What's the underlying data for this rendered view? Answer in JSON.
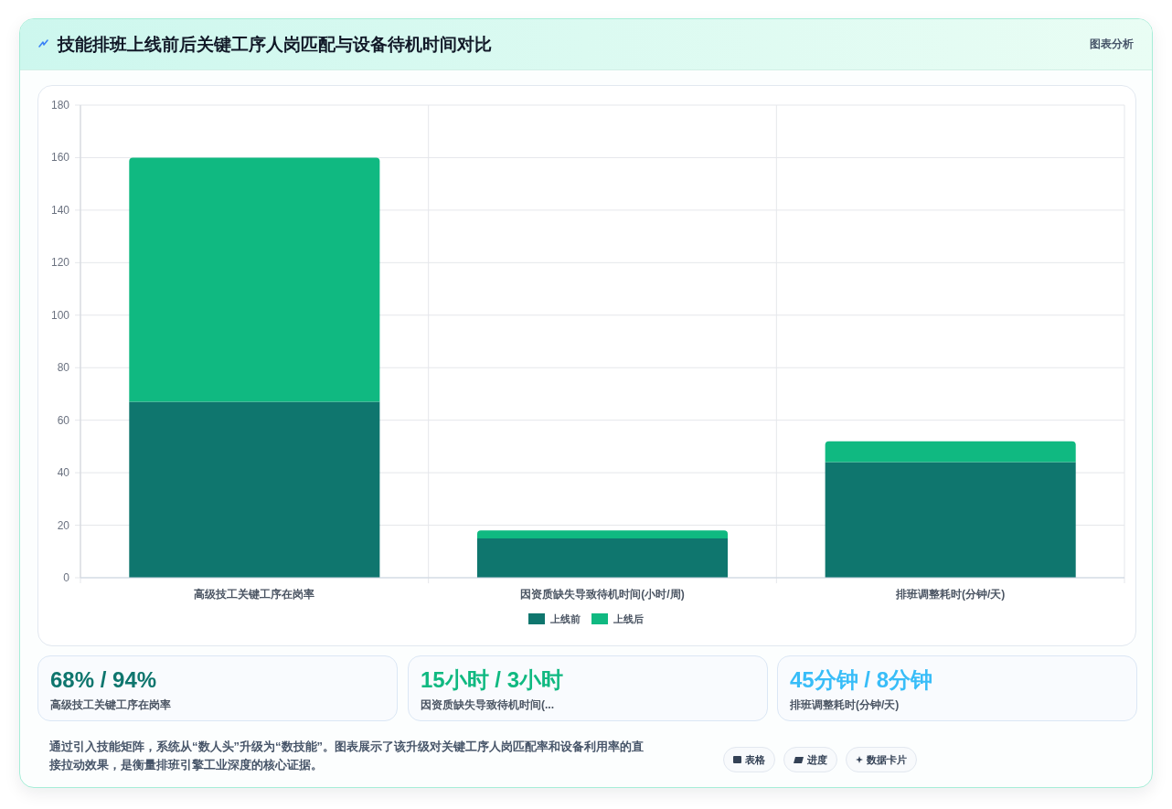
{
  "chart_data": [
    {
      "type": "bar",
      "title": "技能排班上线前后关键工序人岗匹配与设备待机时间对比",
      "annotations": [
        "图表分析",
        "通过引入技能矩阵，系统从“数人头”升级为“数技能”。图表展示了该升级对关键工序人岗匹配率和设备利用率的直接拉动效果，是衡量排班引擎工业深度的核心证据。",
        "表格",
        "进度",
        "数据卡片"
      ],
      "categories": [
        "高级技工关键工序在岗率",
        "因资质缺失导致待机时间(小时/周)",
        "排班调整耗时(分钟/天)"
      ],
      "series": [
        {
          "name": "上线前",
          "color": "#0f766e",
          "values": [
            67,
            15,
            44
          ]
        },
        {
          "name": "上线后",
          "color": "#10b981",
          "values": [
            93,
            3,
            8
          ]
        }
      ],
      "stacked": true,
      "ylim": [
        0,
        180
      ],
      "yticks": [
        0,
        20,
        40,
        60,
        80,
        100,
        120,
        140,
        160,
        180
      ],
      "grid": true,
      "legend": "bottom"
    },
    {
      "type": "other",
      "title": "68% / 94%",
      "subtitle": "高级技工关键工序在岗率",
      "color": "#0f766e"
    },
    {
      "type": "other",
      "title": "15小时 / 3小时",
      "subtitle": "因资质缺失导致待机时间(...",
      "color": "#10b981"
    },
    {
      "type": "other",
      "title": "45分钟 / 8分钟",
      "subtitle": "排班调整耗时(分钟/天)",
      "color": "#38bdf8"
    }
  ]
}
